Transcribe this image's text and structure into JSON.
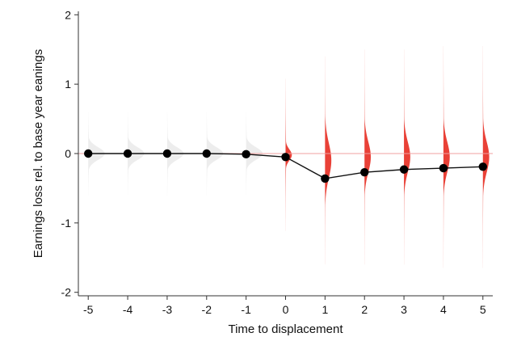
{
  "chart_data": {
    "type": "line",
    "xlabel": "Time to displacement",
    "ylabel": "Earnings loss rel. to base year eanings",
    "xlim": [
      -5.25,
      5.25
    ],
    "ylim": [
      -2.05,
      2.05
    ],
    "xticks": [
      -5,
      -4,
      -3,
      -2,
      -1,
      0,
      1,
      2,
      3,
      4,
      5
    ],
    "xtick_labels": [
      "-5",
      "-4",
      "-3",
      "-2",
      "-1",
      "0",
      "1",
      "2",
      "3",
      "4",
      "5"
    ],
    "yticks": [
      -2,
      -1,
      0,
      1,
      2
    ],
    "ytick_labels": [
      "-2",
      "-1",
      "0",
      "1",
      "2"
    ],
    "reference_line_y": 0,
    "grid": false,
    "series": [
      {
        "x": [
          -5,
          -4,
          -3,
          -2,
          -1,
          0,
          1,
          2,
          3,
          4,
          5
        ],
        "values": [
          0.0,
          0.0,
          0.0,
          0.0,
          -0.01,
          -0.05,
          -0.36,
          -0.27,
          -0.23,
          -0.21,
          -0.19
        ]
      }
    ],
    "distributions": [
      {
        "x": -5,
        "center": 0.0,
        "spread": 0.09,
        "tail": 0.6,
        "color": "#ebebeb"
      },
      {
        "x": -4,
        "center": 0.0,
        "spread": 0.09,
        "tail": 0.6,
        "color": "#ebebeb"
      },
      {
        "x": -3,
        "center": 0.0,
        "spread": 0.09,
        "tail": 0.6,
        "color": "#ebebeb"
      },
      {
        "x": -2,
        "center": 0.0,
        "spread": 0.09,
        "tail": 0.6,
        "color": "#ebebeb"
      },
      {
        "x": -1,
        "center": 0.0,
        "spread": 0.09,
        "tail": 0.6,
        "color": "#ebebeb"
      },
      {
        "x": 0,
        "center": -0.02,
        "spread": 0.08,
        "tail": 1.1,
        "color": "#e8372c"
      },
      {
        "x": 1,
        "center": -0.1,
        "spread": 0.25,
        "tail": 1.5,
        "color": "#e8372c"
      },
      {
        "x": 2,
        "center": -0.05,
        "spread": 0.22,
        "tail": 1.55,
        "color": "#e8372c"
      },
      {
        "x": 3,
        "center": -0.05,
        "spread": 0.22,
        "tail": 1.55,
        "color": "#e8372c"
      },
      {
        "x": 4,
        "center": -0.05,
        "spread": 0.22,
        "tail": 1.6,
        "color": "#e8372c"
      },
      {
        "x": 5,
        "center": -0.05,
        "spread": 0.22,
        "tail": 1.6,
        "color": "#e8372c"
      }
    ],
    "colors": {
      "line": "#111111",
      "marker": "#000000",
      "reference_line": "#f0a0a0",
      "axis": "#333333"
    }
  }
}
